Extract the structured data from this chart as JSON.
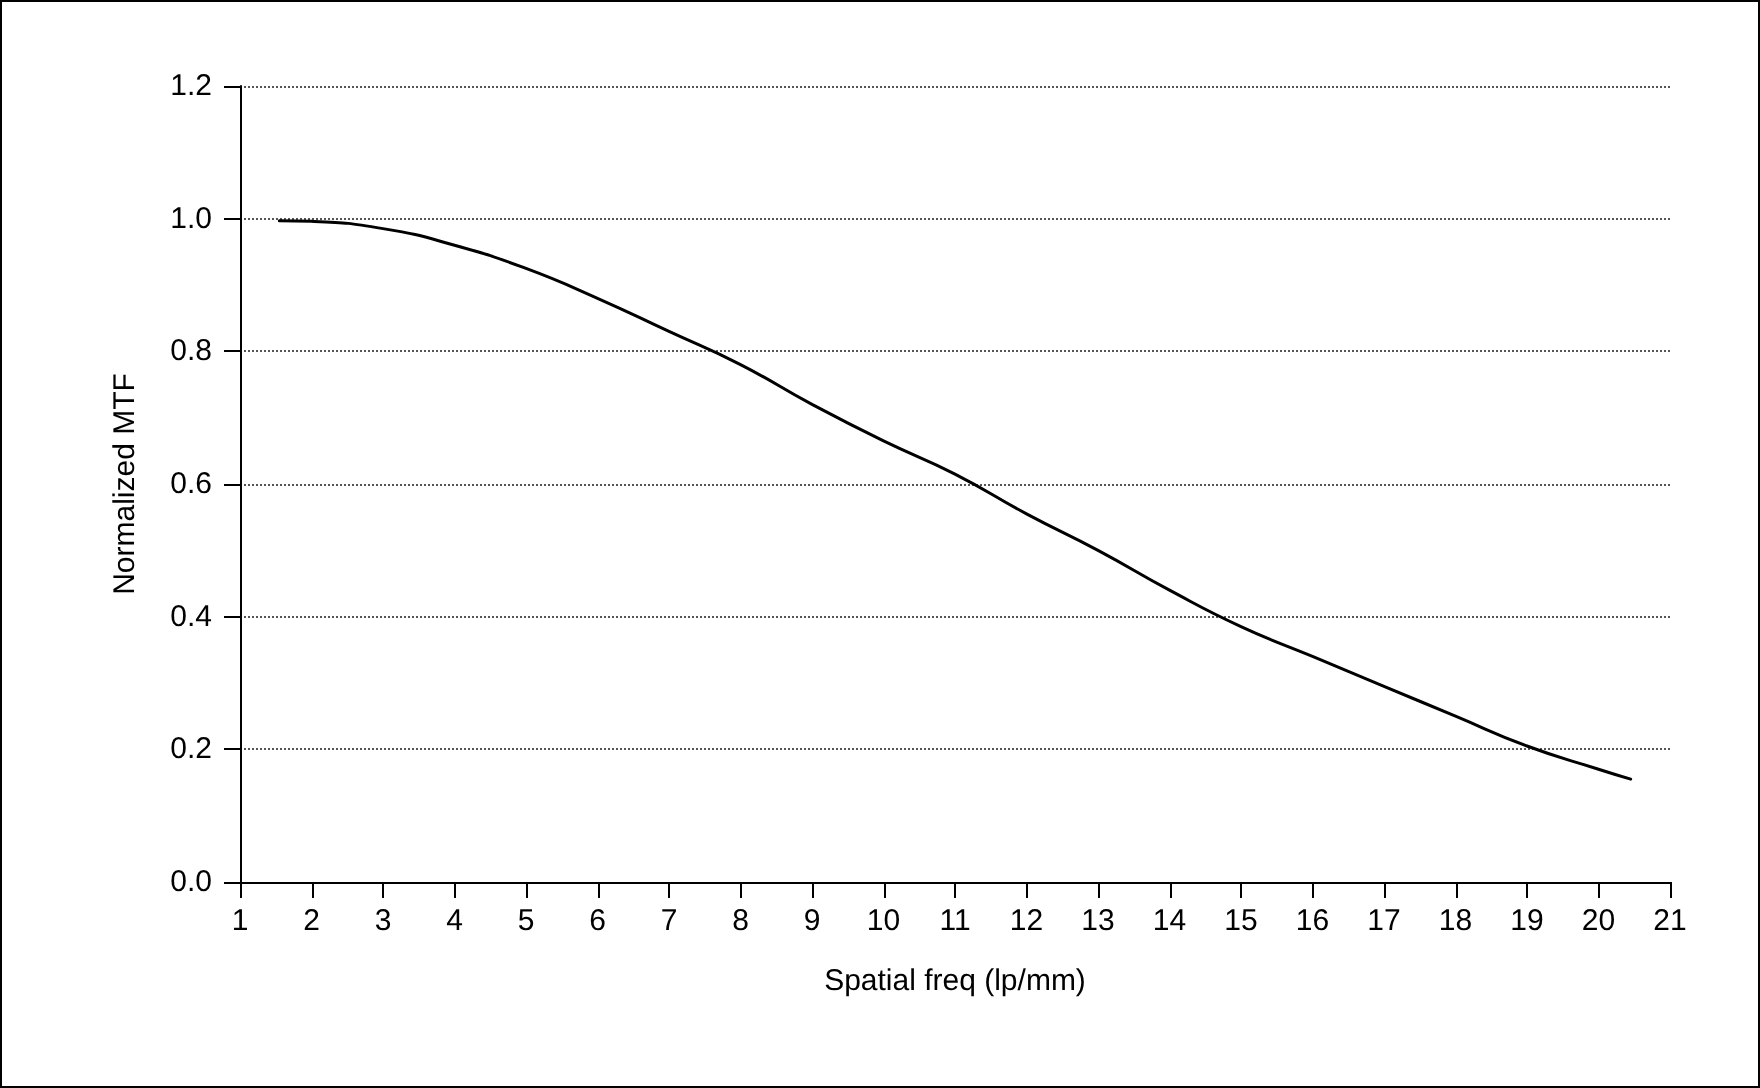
{
  "chart_data": {
    "type": "line",
    "xlabel": "Spatial freq (lp/mm)",
    "ylabel": "Normalized MTF",
    "x": [
      1.55,
      2,
      3,
      4,
      5,
      6,
      7,
      8,
      9,
      10,
      11,
      12,
      13,
      14,
      15,
      16,
      17,
      18,
      19,
      20,
      20.45
    ],
    "series": [
      {
        "color": "#000000",
        "values": [
          0.997,
          0.996,
          0.985,
          0.96,
          0.925,
          0.88,
          0.83,
          0.78,
          0.72,
          0.665,
          0.615,
          0.555,
          0.5,
          0.44,
          0.385,
          0.34,
          0.295,
          0.25,
          0.205,
          0.17,
          0.155
        ]
      }
    ],
    "xlim": [
      1,
      21
    ],
    "xticks": [
      1,
      2,
      3,
      4,
      5,
      6,
      7,
      8,
      9,
      10,
      11,
      12,
      13,
      14,
      15,
      16,
      17,
      18,
      19,
      20,
      21
    ],
    "ylim": [
      0,
      1.2
    ],
    "yticks": [
      {
        "value": 0,
        "label": "0.0"
      },
      {
        "value": 0.2,
        "label": "0.2"
      },
      {
        "value": 0.4,
        "label": "0.4"
      },
      {
        "value": 0.6,
        "label": "0.6"
      },
      {
        "value": 0.8,
        "label": "0.8"
      },
      {
        "value": 1,
        "label": "1.0"
      },
      {
        "value": 1.2,
        "label": "1.2"
      }
    ],
    "grid": "y",
    "marker": "none",
    "line_style": "solid"
  }
}
